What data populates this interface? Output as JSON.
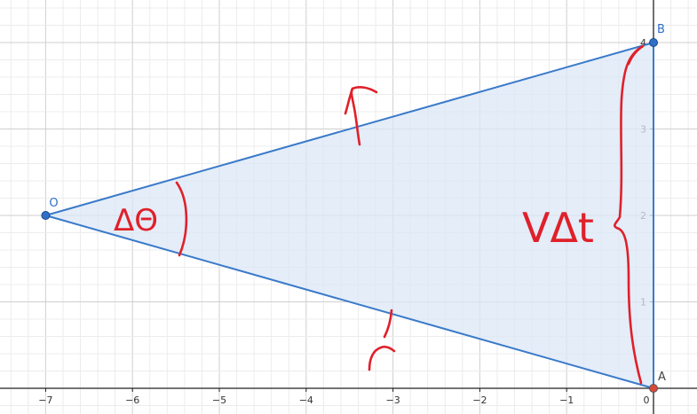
{
  "colors": {
    "minor_grid": "#ececec",
    "major_grid": "#cfcfcf",
    "axis": "#222222",
    "triangle_stroke": "#3a7ac9",
    "triangle_fill": "#dbe7f6",
    "point_fill": "#2f6fc6",
    "point_stroke": "#174a8d",
    "origin_point_fill": "#d64a3a",
    "annotation": "#e0202a",
    "tick_text": "#333333"
  },
  "axes": {
    "x_ticks": [
      "−7",
      "−6",
      "−5",
      "−4",
      "−3",
      "−2",
      "−1",
      "0"
    ],
    "y_ticks": [
      "1",
      "2",
      "3",
      "4"
    ]
  },
  "points": {
    "O": {
      "label": "O",
      "x": -7,
      "y": 2
    },
    "A": {
      "label": "A",
      "x": 0,
      "y": 0
    },
    "B": {
      "label": "B",
      "x": 0,
      "y": 4
    }
  },
  "annotations": {
    "angle_label": "ΔΘ",
    "length_label": "VΔt"
  }
}
